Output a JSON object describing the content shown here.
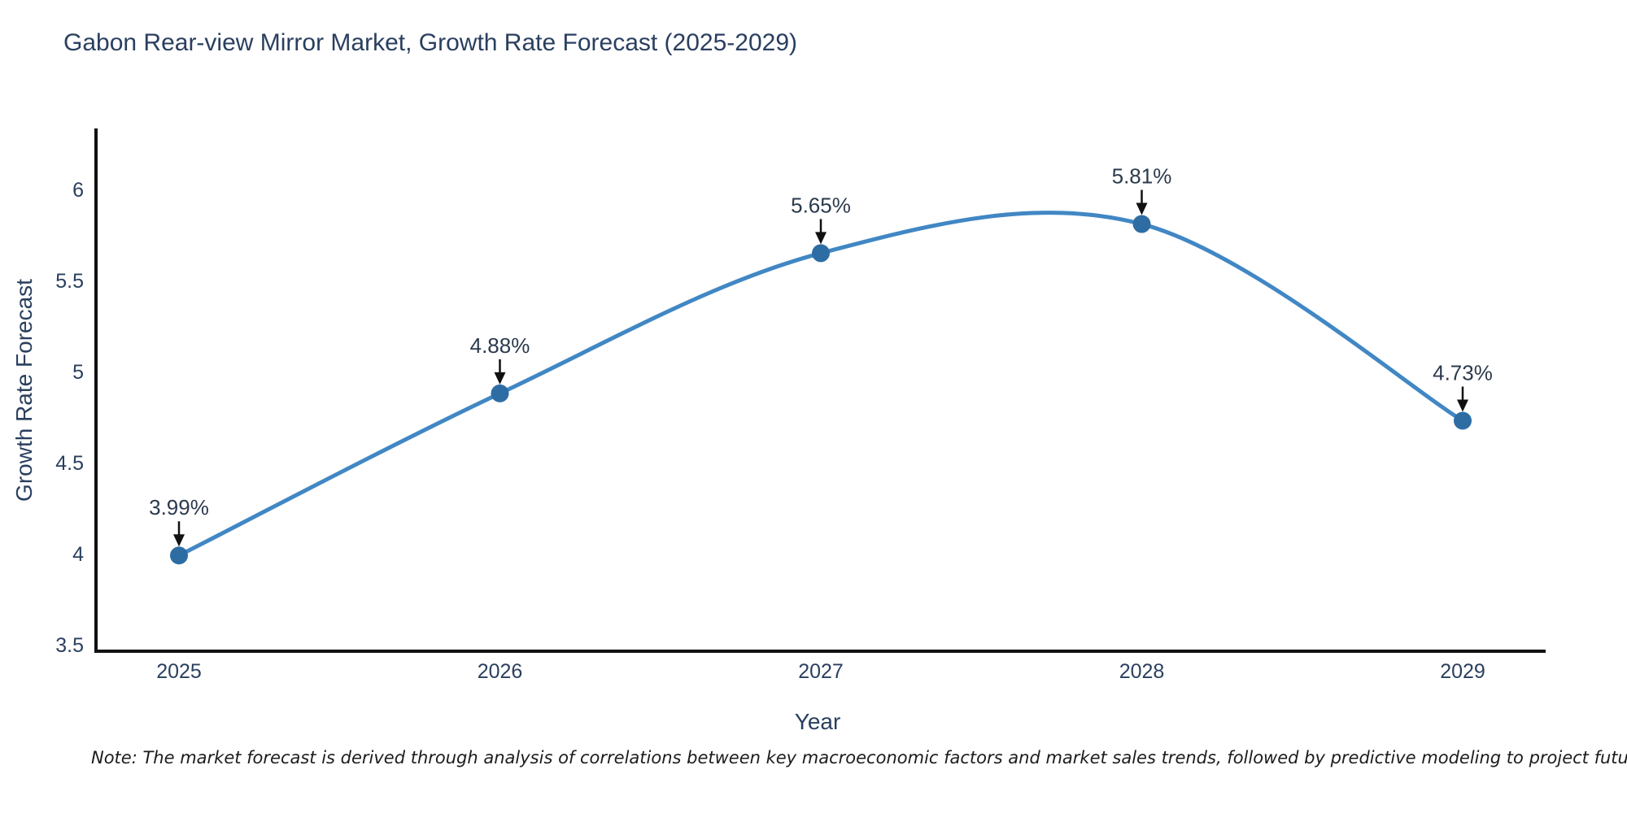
{
  "figure": {
    "title": "Gabon Rear-view Mirror Market, Growth Rate Forecast (2025-2029)",
    "note": "Note: The market forecast is derived through analysis of correlations between key macroeconomic factors and market sales trends, followed by predictive modeling to project future sales"
  },
  "chart_data": {
    "type": "line",
    "title": "Gabon Rear-view Mirror Market, Growth Rate Forecast (2025-2029)",
    "xlabel": "Year",
    "ylabel": "Growth Rate Forecast",
    "x": [
      2025,
      2026,
      2027,
      2028,
      2029
    ],
    "series": [
      {
        "name": "Growth Rate Forecast",
        "values": [
          3.99,
          4.88,
          5.65,
          5.81,
          4.73
        ]
      }
    ],
    "point_labels": [
      "3.99%",
      "4.88%",
      "5.65%",
      "5.81%",
      "4.73%"
    ],
    "xtick_labels": [
      "2025",
      "2026",
      "2027",
      "2028",
      "2029"
    ],
    "ytick_values": [
      3.5,
      4,
      4.5,
      5,
      5.5,
      6
    ],
    "ytick_labels": [
      "3.5",
      "4",
      "4.5",
      "5",
      "5.5",
      "6"
    ],
    "ylim": [
      3.5,
      6.33
    ],
    "line_shape": "spline",
    "grid": false,
    "legend": "none",
    "colors": {
      "line": "#4187c4",
      "marker": "#2e6da4",
      "axis": "#111111",
      "tick_text": "#2a3f5f",
      "annotation_arrow": "#111111",
      "title_text": "#2a3f5f"
    }
  }
}
